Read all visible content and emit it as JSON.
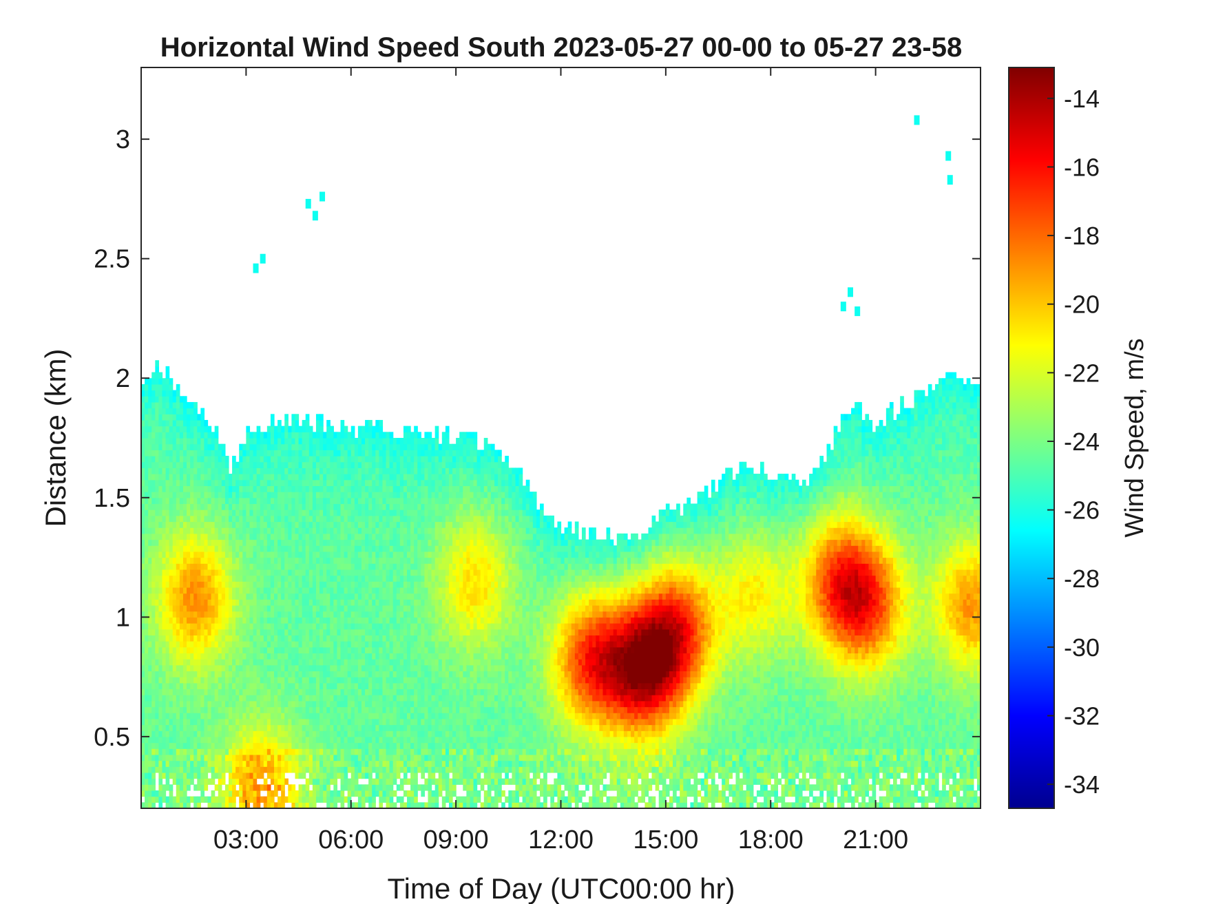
{
  "chart_data": {
    "type": "heatmap",
    "title": "Horizontal Wind Speed South 2023-05-27 00-00 to 05-27 23-58",
    "xlabel": "Time of Day (UTC00:00 hr)",
    "ylabel": "Distance (km)",
    "colorbar_label": "Wind Speed, m/s",
    "xlim_hours": [
      0,
      24
    ],
    "ylim_km": [
      0.2,
      3.3
    ],
    "x_ticks": [
      {
        "hours": 3,
        "label": "03:00"
      },
      {
        "hours": 6,
        "label": "06:00"
      },
      {
        "hours": 9,
        "label": "09:00"
      },
      {
        "hours": 12,
        "label": "12:00"
      },
      {
        "hours": 15,
        "label": "15:00"
      },
      {
        "hours": 18,
        "label": "18:00"
      },
      {
        "hours": 21,
        "label": "21:00"
      }
    ],
    "y_ticks": [
      {
        "km": 0.5,
        "label": "0.5"
      },
      {
        "km": 1,
        "label": "1"
      },
      {
        "km": 1.5,
        "label": "1.5"
      },
      {
        "km": 2,
        "label": "2"
      },
      {
        "km": 2.5,
        "label": "2.5"
      },
      {
        "km": 3,
        "label": "3"
      }
    ],
    "colorbar": {
      "colormap": "jet",
      "clim": [
        -34.7,
        -13.1
      ],
      "ticks": [
        {
          "value": -14,
          "label": "-14"
        },
        {
          "value": -16,
          "label": "-16"
        },
        {
          "value": -18,
          "label": "-18"
        },
        {
          "value": -20,
          "label": "-20"
        },
        {
          "value": -22,
          "label": "-22"
        },
        {
          "value": -24,
          "label": "-24"
        },
        {
          "value": -26,
          "label": "-26"
        },
        {
          "value": -28,
          "label": "-28"
        },
        {
          "value": -30,
          "label": "-30"
        },
        {
          "value": -32,
          "label": "-32"
        },
        {
          "value": -34,
          "label": "-34"
        }
      ]
    },
    "data_top_km_by_hour": {
      "hours": [
        0,
        0.5,
        1,
        2,
        2.6,
        3,
        4,
        5,
        6,
        7,
        8,
        9,
        10,
        10.8,
        11.5,
        12,
        13,
        14,
        15,
        15.8,
        16.5,
        17,
        18,
        18.8,
        19.5,
        20,
        20.5,
        21,
        22,
        23,
        24
      ],
      "top_km": [
        1.95,
        2.05,
        1.95,
        1.8,
        1.6,
        1.75,
        1.82,
        1.8,
        1.78,
        1.78,
        1.76,
        1.75,
        1.7,
        1.58,
        1.45,
        1.38,
        1.33,
        1.32,
        1.42,
        1.45,
        1.55,
        1.62,
        1.58,
        1.55,
        1.65,
        1.8,
        1.85,
        1.8,
        1.9,
        2.0,
        1.95
      ]
    },
    "core_regions": [
      {
        "center_hours": 1.5,
        "center_km": 1.08,
        "speed": -18.8
      },
      {
        "center_hours": 9.5,
        "center_km": 1.15,
        "speed": -20.5
      },
      {
        "center_hours": 12.8,
        "center_km": 0.82,
        "speed": -17.0
      },
      {
        "center_hours": 14.3,
        "center_km": 0.78,
        "speed": -15.0
      },
      {
        "center_hours": 15.3,
        "center_km": 0.95,
        "speed": -17.2
      },
      {
        "center_hours": 17.5,
        "center_km": 1.1,
        "speed": -21.0
      },
      {
        "center_hours": 19.9,
        "center_km": 1.15,
        "speed": -18.0
      },
      {
        "center_hours": 20.8,
        "center_km": 1.05,
        "speed": -18.5
      },
      {
        "center_hours": 23.7,
        "center_km": 1.05,
        "speed": -19.0
      },
      {
        "center_hours": 3.4,
        "center_km": 0.28,
        "speed": -19.5
      }
    ],
    "ambient_speed": -24.5,
    "edge_speed": -26.2
  }
}
